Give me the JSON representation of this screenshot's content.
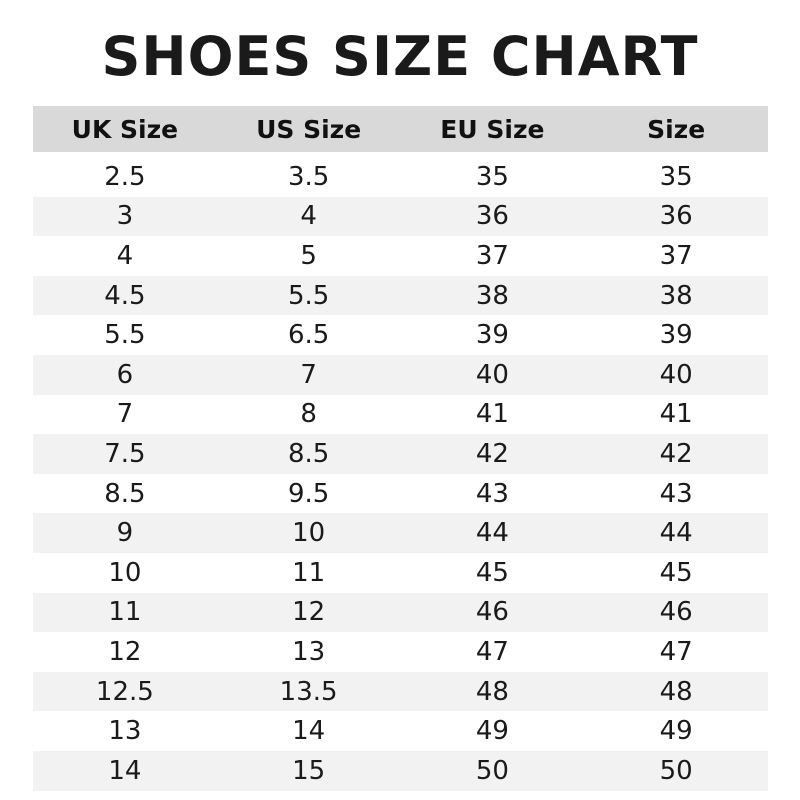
{
  "title": "SHOES SIZE CHART",
  "columns": [
    "UK Size",
    "US Size",
    "EU Size",
    "Size"
  ],
  "rows": [
    [
      "2.5",
      "3.5",
      "35",
      "35"
    ],
    [
      "3",
      "4",
      "36",
      "36"
    ],
    [
      "4",
      "5",
      "37",
      "37"
    ],
    [
      "4.5",
      "5.5",
      "38",
      "38"
    ],
    [
      "5.5",
      "6.5",
      "39",
      "39"
    ],
    [
      "6",
      "7",
      "40",
      "40"
    ],
    [
      "7",
      "8",
      "41",
      "41"
    ],
    [
      "7.5",
      "8.5",
      "42",
      "42"
    ],
    [
      "8.5",
      "9.5",
      "43",
      "43"
    ],
    [
      "9",
      "10",
      "44",
      "44"
    ],
    [
      "10",
      "11",
      "45",
      "45"
    ],
    [
      "11",
      "12",
      "46",
      "46"
    ],
    [
      "12",
      "13",
      "47",
      "47"
    ],
    [
      "12.5",
      "13.5",
      "48",
      "48"
    ],
    [
      "13",
      "14",
      "49",
      "49"
    ],
    [
      "14",
      "15",
      "50",
      "50"
    ]
  ],
  "colors": {
    "header_bg": "#d9d9d9",
    "stripe_bg": "#f2f2f2",
    "text": "#1a1a1a"
  }
}
